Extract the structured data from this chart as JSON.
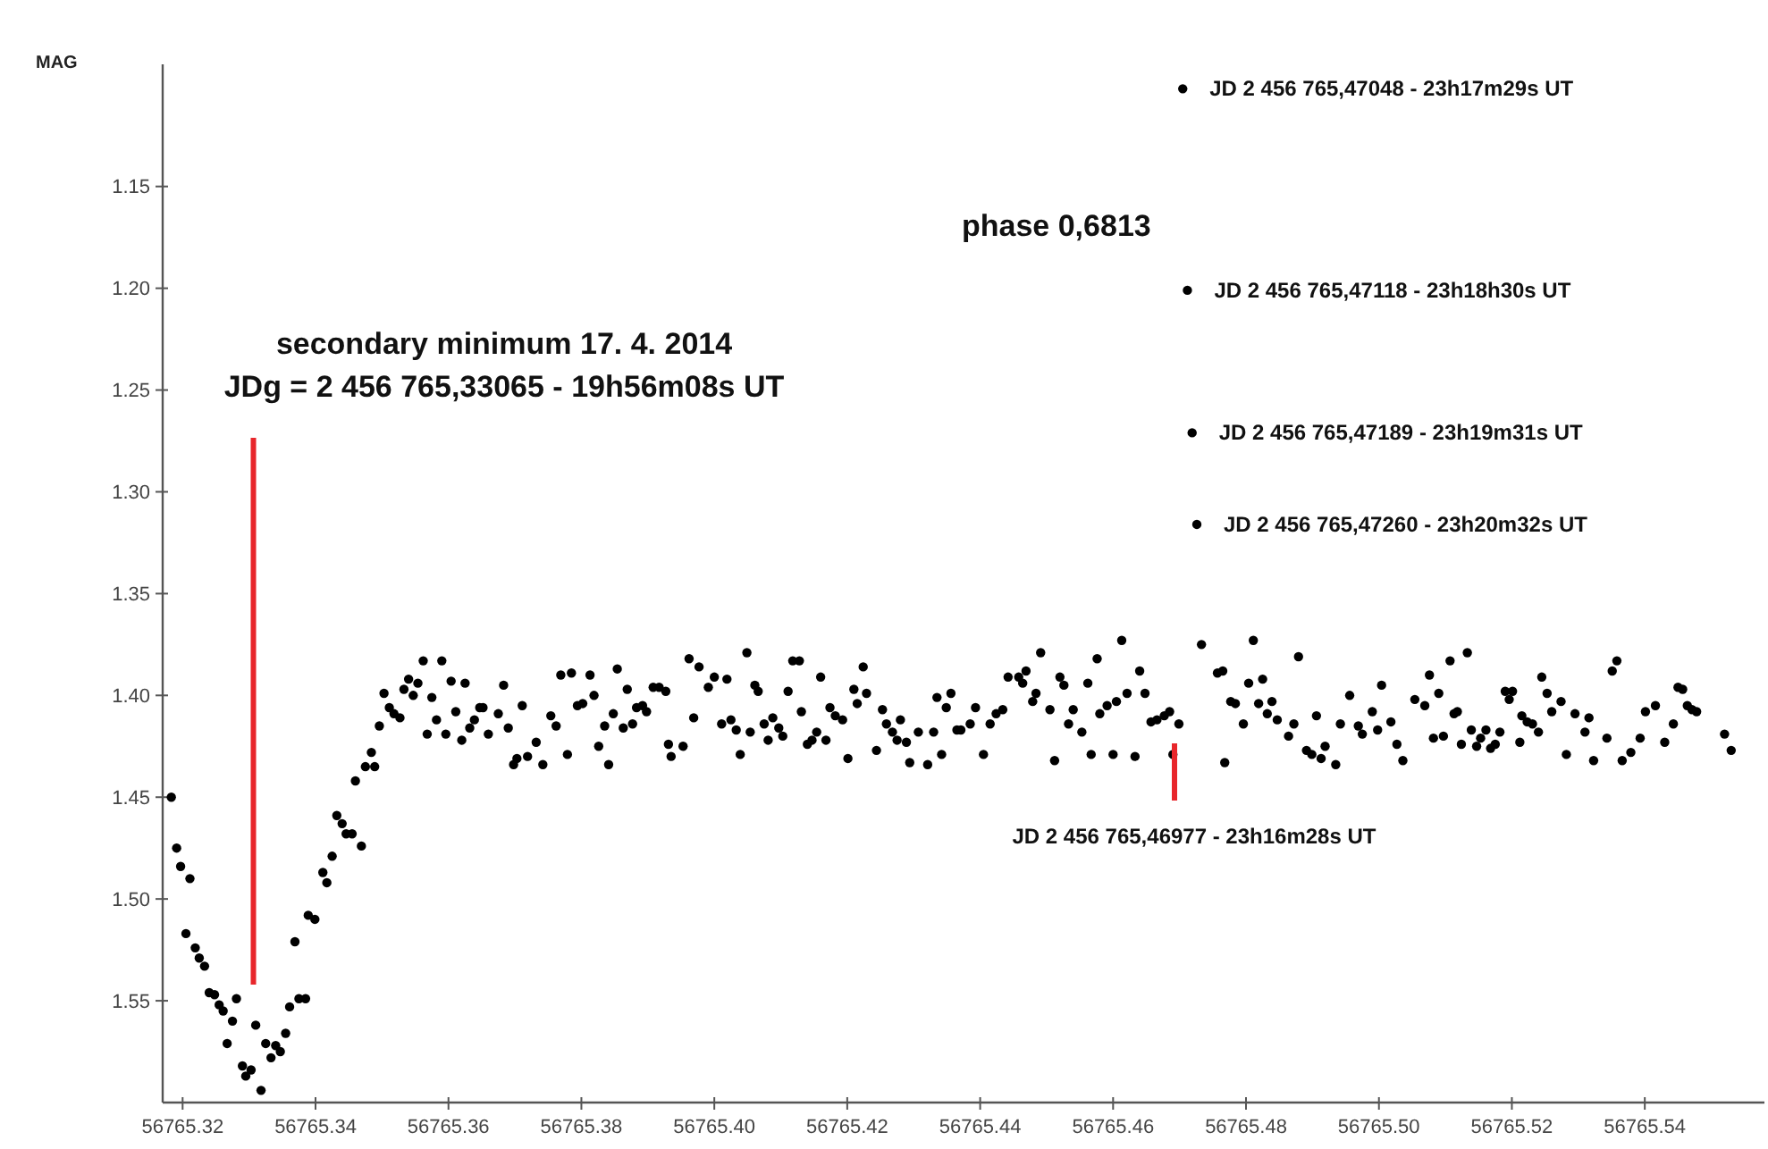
{
  "chart_data": {
    "type": "scatter",
    "ylabel": "MAG",
    "marker": "circle",
    "grid": false,
    "xlim": [
      56765.317,
      56765.558
    ],
    "ylim": [
      1.6,
      1.09
    ],
    "xticks": [
      {
        "value": 56765.32,
        "label": "56765.32"
      },
      {
        "value": 56765.34,
        "label": "56765.34"
      },
      {
        "value": 56765.36,
        "label": "56765.36"
      },
      {
        "value": 56765.38,
        "label": "56765.38"
      },
      {
        "value": 56765.4,
        "label": "56765.40"
      },
      {
        "value": 56765.42,
        "label": "56765.42"
      },
      {
        "value": 56765.44,
        "label": "56765.44"
      },
      {
        "value": 56765.46,
        "label": "56765.46"
      },
      {
        "value": 56765.48,
        "label": "56765.48"
      },
      {
        "value": 56765.5,
        "label": "56765.50"
      },
      {
        "value": 56765.52,
        "label": "56765.52"
      },
      {
        "value": 56765.54,
        "label": "56765.54"
      }
    ],
    "yticks": [
      1.15,
      {
        "value": 1.2,
        "label": "1.20"
      },
      1.25,
      {
        "value": 1.3,
        "label": "1.30"
      },
      1.35,
      {
        "value": 1.4,
        "label": "1.40"
      },
      1.45,
      {
        "value": 1.5,
        "label": "1.50"
      },
      1.55
    ],
    "ref_lines": [
      {
        "axis": "x",
        "value": 56765.33065,
        "color": "#e8262b"
      }
    ],
    "annotations": [
      "secondary minimum 17. 4. 2014\nJDg = 2 456 765,33065 - 19h56m08s UT",
      "JD 2 456 765,46977 - 23h16m28s UT",
      "phase 0,6813",
      {
        "text": "JD 2 456 765,47048 - 23h17m29s UT",
        "x": 56765.47048,
        "y": 1.102
      },
      {
        "text": "JD 2 456 765,47118 - 23h18h30s UT",
        "x": 56765.47118,
        "y": 1.201
      },
      {
        "text": "JD 2 456 765,47189 - 23h19m31s UT",
        "x": 56765.47189,
        "y": 1.271
      },
      {
        "text": "JD 2 456 765,47260 - 23h20m32s UT",
        "x": 56765.4726,
        "y": 1.316
      }
    ],
    "series": [
      {
        "color": "#000000",
        "x": [
          56765.3183,
          56765.3191,
          56765.3197,
          56765.3211,
          56765.3205,
          56765.3219,
          56765.3225,
          56765.3233,
          56765.324,
          56765.3248,
          56765.3255,
          56765.3261,
          56765.3267,
          56765.3275,
          56765.3281,
          56765.329,
          56765.3295,
          56765.3303,
          56765.331,
          56765.3318,
          56765.3325,
          56765.3333,
          56765.334,
          56765.3347,
          56765.3355,
          56765.3361,
          56765.3369,
          56765.3375,
          56765.3385,
          56765.3389,
          56765.3399,
          56765.3411,
          56765.3417,
          56765.3425,
          56765.3432,
          56765.344,
          56765.3446,
          56765.3455,
          56765.3469,
          56765.346,
          56765.3475,
          56765.3484,
          56765.3489,
          56765.3496,
          56765.3503,
          56765.3511,
          56765.3518,
          56765.3527,
          56765.3533,
          56765.354,
          56765.3547,
          56765.3554,
          56765.3562,
          56765.3568,
          56765.3575,
          56765.3582,
          56765.359,
          56765.3596,
          56765.3604,
          56765.3611,
          56765.362,
          56765.3625,
          56765.3632,
          56765.3639,
          56765.3647,
          56765.3652,
          56765.366,
          56765.3675,
          56765.3683,
          56765.369,
          56765.3698,
          56765.3703,
          56765.3711,
          56765.3719,
          56765.3732,
          56765.3742,
          56765.3754,
          56765.3762,
          56765.3769,
          56765.3779,
          56765.3785,
          56765.3794,
          56765.3802,
          56765.3813,
          56765.3819,
          56765.3826,
          56765.3835,
          56765.3841,
          56765.3848,
          56765.3854,
          56765.3863,
          56765.3869,
          56765.3877,
          56765.3883,
          56765.3892,
          56765.3898,
          56765.3908,
          56765.3917,
          56765.3927,
          56765.3931,
          56765.3935,
          56765.3953,
          56765.3962,
          56765.3969,
          56765.3977,
          56765.3991,
          56765.4,
          56765.4011,
          56765.4019,
          56765.4025,
          56765.4033,
          56765.4039,
          56765.4049,
          56765.4054,
          56765.4061,
          56765.4066,
          56765.4075,
          56765.4081,
          56765.4088,
          56765.4097,
          56765.4103,
          56765.4111,
          56765.4118,
          56765.4128,
          56765.4131,
          56765.414,
          56765.4147,
          56765.4154,
          56765.416,
          56765.4168,
          56765.4174,
          56765.4182,
          56765.4193,
          56765.4201,
          56765.421,
          56765.4215,
          56765.4224,
          56765.4229,
          56765.4244,
          56765.4253,
          56765.4259,
          56765.4268,
          56765.4275,
          56765.428,
          56765.4289,
          56765.4294,
          56765.4307,
          56765.4321,
          56765.433,
          56765.4335,
          56765.4342,
          56765.4349,
          56765.4356,
          56765.4365,
          56765.4371,
          56765.4385,
          56765.4393,
          56765.4405,
          56765.4415,
          56765.4424,
          56765.4434,
          56765.4442,
          56765.4458,
          56765.4464,
          56765.4469,
          56765.4479,
          56765.4484,
          56765.4491,
          56765.4505,
          56765.4512,
          56765.452,
          56765.4526,
          56765.4533,
          56765.454,
          56765.4553,
          56765.4562,
          56765.4567,
          56765.4576,
          56765.458,
          56765.4591,
          56765.46,
          56765.4605,
          56765.4613,
          56765.4621,
          56765.4633,
          56765.464,
          56765.4648,
          56765.4657,
          56765.4666,
          56765.4677,
          56765.4685,
          56765.469,
          56765.4699,
          56765.47048,
          56765.47118,
          56765.47189,
          56765.4726,
          56765.4733,
          56765.4757,
          56765.4765,
          56765.4768,
          56765.4777,
          56765.4784,
          56765.4796,
          56765.4804,
          56765.4811,
          56765.4819,
          56765.4825,
          56765.4832,
          56765.4839,
          56765.4847,
          56765.4864,
          56765.4872,
          56765.4879,
          56765.4891,
          56765.4899,
          56765.4906,
          56765.4913,
          56765.4919,
          56765.4935,
          56765.4942,
          56765.4956,
          56765.4969,
          56765.4975,
          56765.499,
          56765.4998,
          56765.5004,
          56765.5018,
          56765.5027,
          56765.5036,
          56765.5054,
          56765.5069,
          56765.5076,
          56765.5082,
          56765.509,
          56765.5097,
          56765.5107,
          56765.5113,
          56765.5118,
          56765.5124,
          56765.5133,
          56765.5139,
          56765.5147,
          56765.5153,
          56765.5161,
          56765.5168,
          56765.5175,
          56765.5182,
          56765.519,
          56765.5196,
          56765.5201,
          56765.5212,
          56765.5215,
          56765.5223,
          56765.5231,
          56765.524,
          56765.5245,
          56765.5253,
          56765.526,
          56765.5274,
          56765.5282,
          56765.5295,
          56765.531,
          56765.5316,
          56765.5323,
          56765.5343,
          56765.5351,
          56765.5358,
          56765.5366,
          56765.5379,
          56765.5393,
          56765.5401,
          56765.5416,
          56765.543,
          56765.5443,
          56765.545,
          56765.5457,
          56765.5464,
          56765.5471,
          56765.5478,
          56765.552,
          56765.553
        ],
        "values": [
          1.45,
          1.475,
          1.484,
          1.49,
          1.517,
          1.524,
          1.529,
          1.533,
          1.546,
          1.547,
          1.552,
          1.555,
          1.571,
          1.56,
          1.549,
          1.582,
          1.587,
          1.584,
          1.562,
          1.594,
          1.571,
          1.578,
          1.572,
          1.575,
          1.566,
          1.553,
          1.521,
          1.549,
          1.549,
          1.508,
          1.51,
          1.487,
          1.492,
          1.479,
          1.459,
          1.463,
          1.468,
          1.468,
          1.474,
          1.442,
          1.435,
          1.428,
          1.435,
          1.415,
          1.399,
          1.406,
          1.409,
          1.411,
          1.397,
          1.392,
          1.4,
          1.394,
          1.383,
          1.419,
          1.401,
          1.412,
          1.383,
          1.419,
          1.393,
          1.408,
          1.422,
          1.394,
          1.416,
          1.412,
          1.406,
          1.406,
          1.419,
          1.409,
          1.395,
          1.416,
          1.434,
          1.431,
          1.405,
          1.43,
          1.423,
          1.434,
          1.41,
          1.415,
          1.39,
          1.429,
          1.389,
          1.405,
          1.404,
          1.39,
          1.4,
          1.425,
          1.415,
          1.434,
          1.409,
          1.387,
          1.416,
          1.397,
          1.414,
          1.406,
          1.405,
          1.408,
          1.396,
          1.396,
          1.398,
          1.424,
          1.43,
          1.425,
          1.382,
          1.411,
          1.386,
          1.396,
          1.391,
          1.414,
          1.392,
          1.412,
          1.417,
          1.429,
          1.379,
          1.418,
          1.395,
          1.398,
          1.414,
          1.422,
          1.411,
          1.416,
          1.42,
          1.398,
          1.383,
          1.383,
          1.408,
          1.424,
          1.422,
          1.418,
          1.391,
          1.422,
          1.406,
          1.41,
          1.412,
          1.431,
          1.397,
          1.404,
          1.386,
          1.399,
          1.427,
          1.407,
          1.414,
          1.418,
          1.422,
          1.412,
          1.423,
          1.433,
          1.418,
          1.434,
          1.418,
          1.401,
          1.429,
          1.406,
          1.399,
          1.417,
          1.417,
          1.414,
          1.406,
          1.429,
          1.414,
          1.409,
          1.407,
          1.391,
          1.391,
          1.394,
          1.388,
          1.403,
          1.399,
          1.379,
          1.407,
          1.432,
          1.391,
          1.395,
          1.414,
          1.407,
          1.418,
          1.394,
          1.429,
          1.382,
          1.409,
          1.405,
          1.429,
          1.403,
          1.373,
          1.399,
          1.43,
          1.388,
          1.399,
          1.413,
          1.412,
          1.41,
          1.408,
          1.429,
          1.414,
          1.102,
          1.201,
          1.271,
          1.316,
          1.375,
          1.389,
          1.388,
          1.433,
          1.403,
          1.404,
          1.414,
          1.394,
          1.373,
          1.404,
          1.392,
          1.409,
          1.403,
          1.412,
          1.42,
          1.414,
          1.381,
          1.427,
          1.429,
          1.41,
          1.431,
          1.425,
          1.434,
          1.414,
          1.4,
          1.415,
          1.419,
          1.408,
          1.417,
          1.395,
          1.413,
          1.424,
          1.432,
          1.402,
          1.405,
          1.39,
          1.421,
          1.399,
          1.42,
          1.383,
          1.409,
          1.408,
          1.424,
          1.379,
          1.417,
          1.425,
          1.421,
          1.417,
          1.426,
          1.424,
          1.418,
          1.398,
          1.402,
          1.398,
          1.423,
          1.41,
          1.413,
          1.414,
          1.418,
          1.391,
          1.399,
          1.408,
          1.403,
          1.429,
          1.409,
          1.418,
          1.411,
          1.432,
          1.421,
          1.388,
          1.383,
          1.432,
          1.428,
          1.421,
          1.408,
          1.405,
          1.423,
          1.414,
          1.396,
          1.397,
          1.405,
          1.407,
          1.408,
          1.419,
          1.427
        ]
      }
    ]
  }
}
